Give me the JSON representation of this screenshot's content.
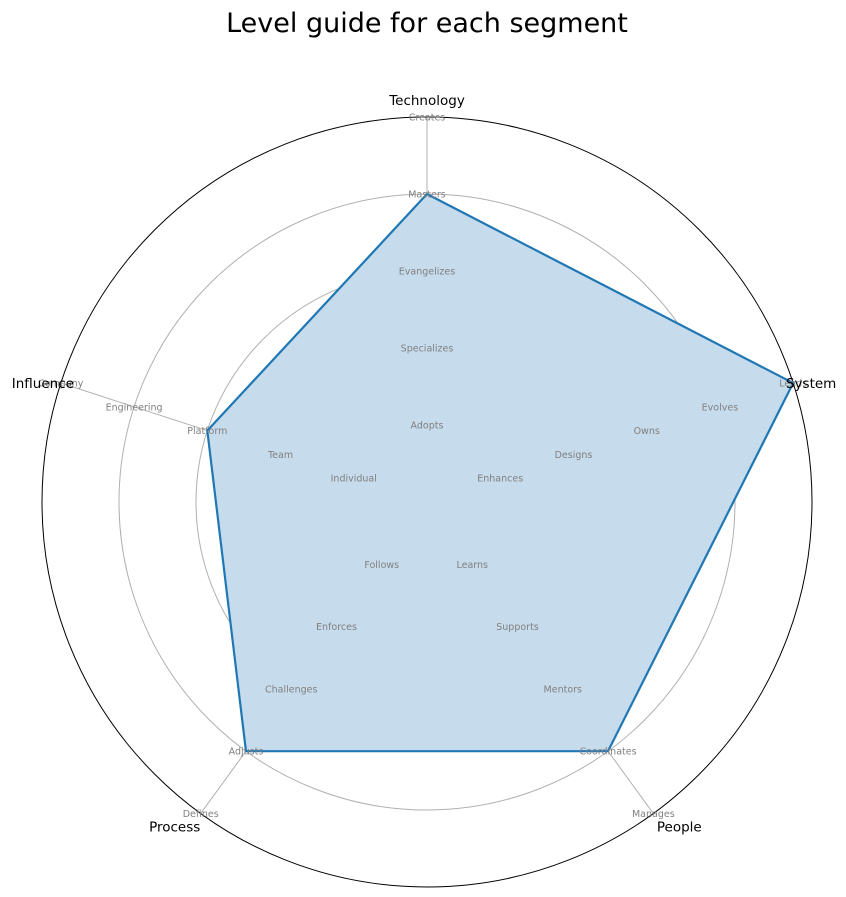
{
  "chart_data": {
    "type": "radar",
    "title": "Level guide for each segment",
    "axes": [
      {
        "name": "Technology",
        "levels": [
          "Adopts",
          "Specializes",
          "Evangelizes",
          "Masters",
          "Creates"
        ]
      },
      {
        "name": "System",
        "levels": [
          "Enhances",
          "Designs",
          "Owns",
          "Evolves",
          "Leads"
        ]
      },
      {
        "name": "People",
        "levels": [
          "Learns",
          "Supports",
          "Mentors",
          "Coordinates",
          "Manages"
        ]
      },
      {
        "name": "Process",
        "levels": [
          "Follows",
          "Enforces",
          "Challenges",
          "Adjusts",
          "Defines"
        ]
      },
      {
        "name": "Influence",
        "levels": [
          "Individual",
          "Team",
          "Platform",
          "Engineering",
          "Company"
        ]
      }
    ],
    "series": [
      {
        "values": [
          4,
          5,
          4,
          4,
          3
        ]
      }
    ],
    "rlim": [
      0,
      5
    ],
    "grid": true,
    "colors": {
      "line": "#1f77b4",
      "fill": "#c6dbec",
      "grid": "#b0b0b0",
      "level_text": "#808080"
    }
  }
}
